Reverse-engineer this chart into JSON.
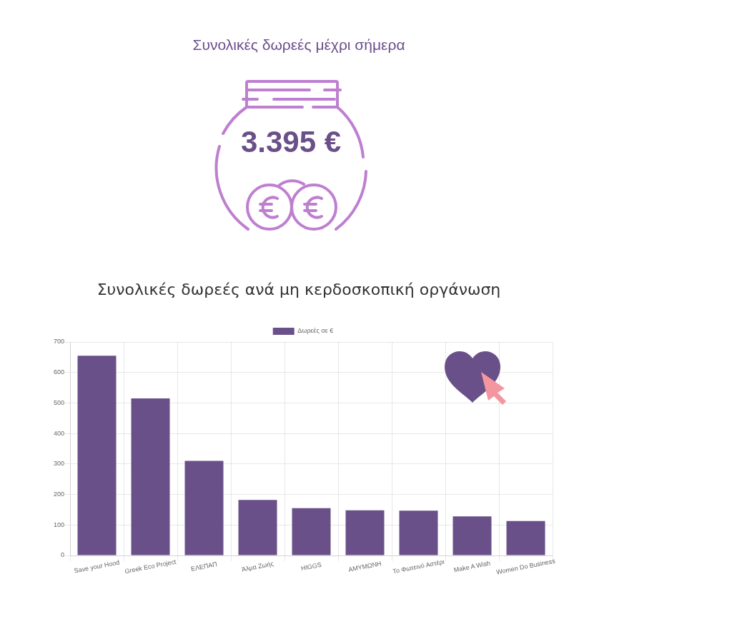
{
  "chart_data": [
    {
      "type": "other",
      "title": "Συνολικές δωρεές μέχρι σήμερα",
      "annotations": [
        "3.395 €"
      ]
    },
    {
      "type": "bar",
      "title": "Συνολικές δωρεές ανά μη κερδοσκοπική οργάνωση",
      "categories": [
        "Save your Hood",
        "Greek Eco Project",
        "ΕΛΕΠΑΠ",
        "Άλμα Ζωής",
        "HIGGS",
        "ΑΜΥΜΩΝΗ",
        "Το Φωτεινό Αστέρι",
        "Make A Wish",
        "Women Do Business"
      ],
      "series": [
        {
          "name": "Δωρεές σε €",
          "color": "#6a5089",
          "values": [
            655,
            515,
            310,
            182,
            155,
            148,
            147,
            128,
            113
          ]
        }
      ],
      "ylim": [
        0,
        700
      ],
      "yticks": [
        0,
        100,
        200,
        300,
        400,
        500,
        600,
        700
      ],
      "grid": true,
      "legend": "top"
    }
  ]
}
